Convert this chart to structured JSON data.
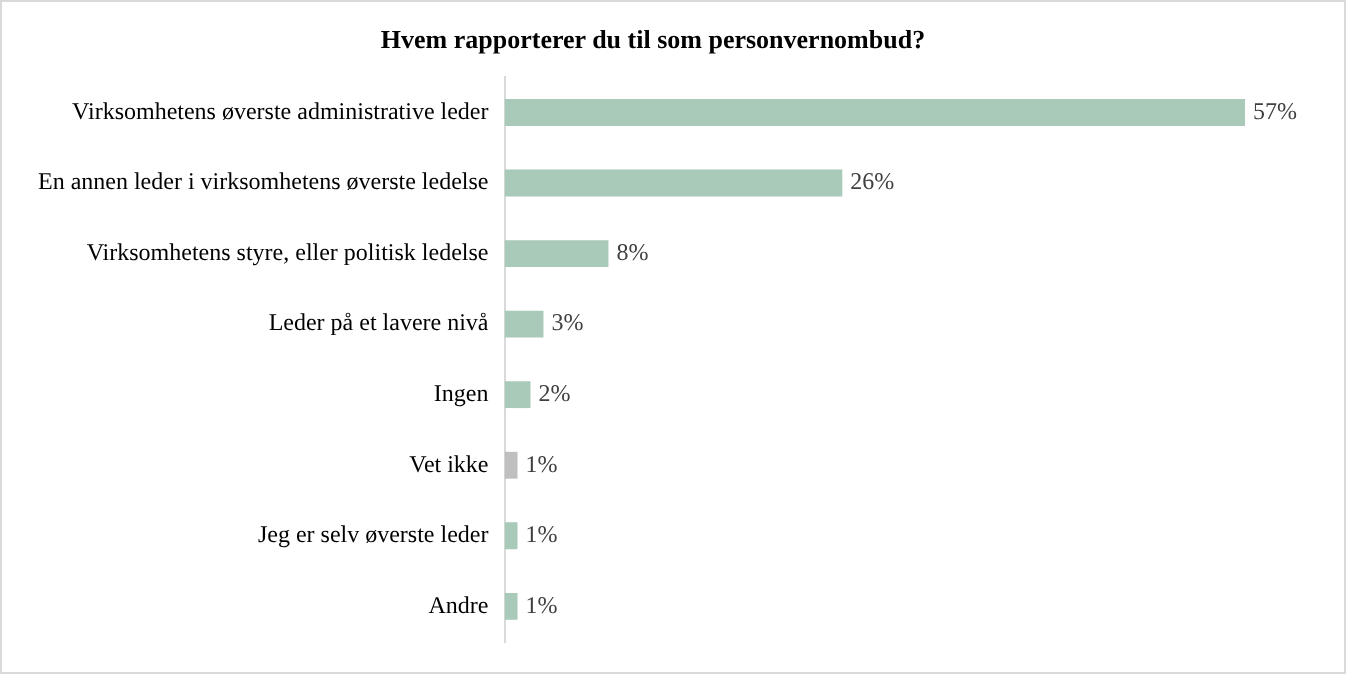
{
  "chart_data": {
    "type": "bar",
    "orientation": "horizontal",
    "title": "Hvem rapporterer du til som personvernombud?",
    "categories": [
      "Virksomhetens øverste administrative leder",
      "En annen leder i virksomhetens øverste ledelse",
      "Virksomhetens styre, eller politisk ledelse",
      "Leder på et lavere nivå",
      "Ingen",
      "Vet ikke",
      "Jeg er selv øverste leder",
      "Andre"
    ],
    "values": [
      57,
      26,
      8,
      3,
      2,
      1,
      1,
      1
    ],
    "colors": [
      "#a9c9b9",
      "#a9c9b9",
      "#a9c9b9",
      "#a9c9b9",
      "#a9c9b9",
      "#bfbfbf",
      "#a9c9b9",
      "#a9c9b9"
    ],
    "value_labels": [
      "57%",
      "26%",
      "8%",
      "3%",
      "2%",
      "1%",
      "1%",
      "1%"
    ],
    "legend": false
  }
}
